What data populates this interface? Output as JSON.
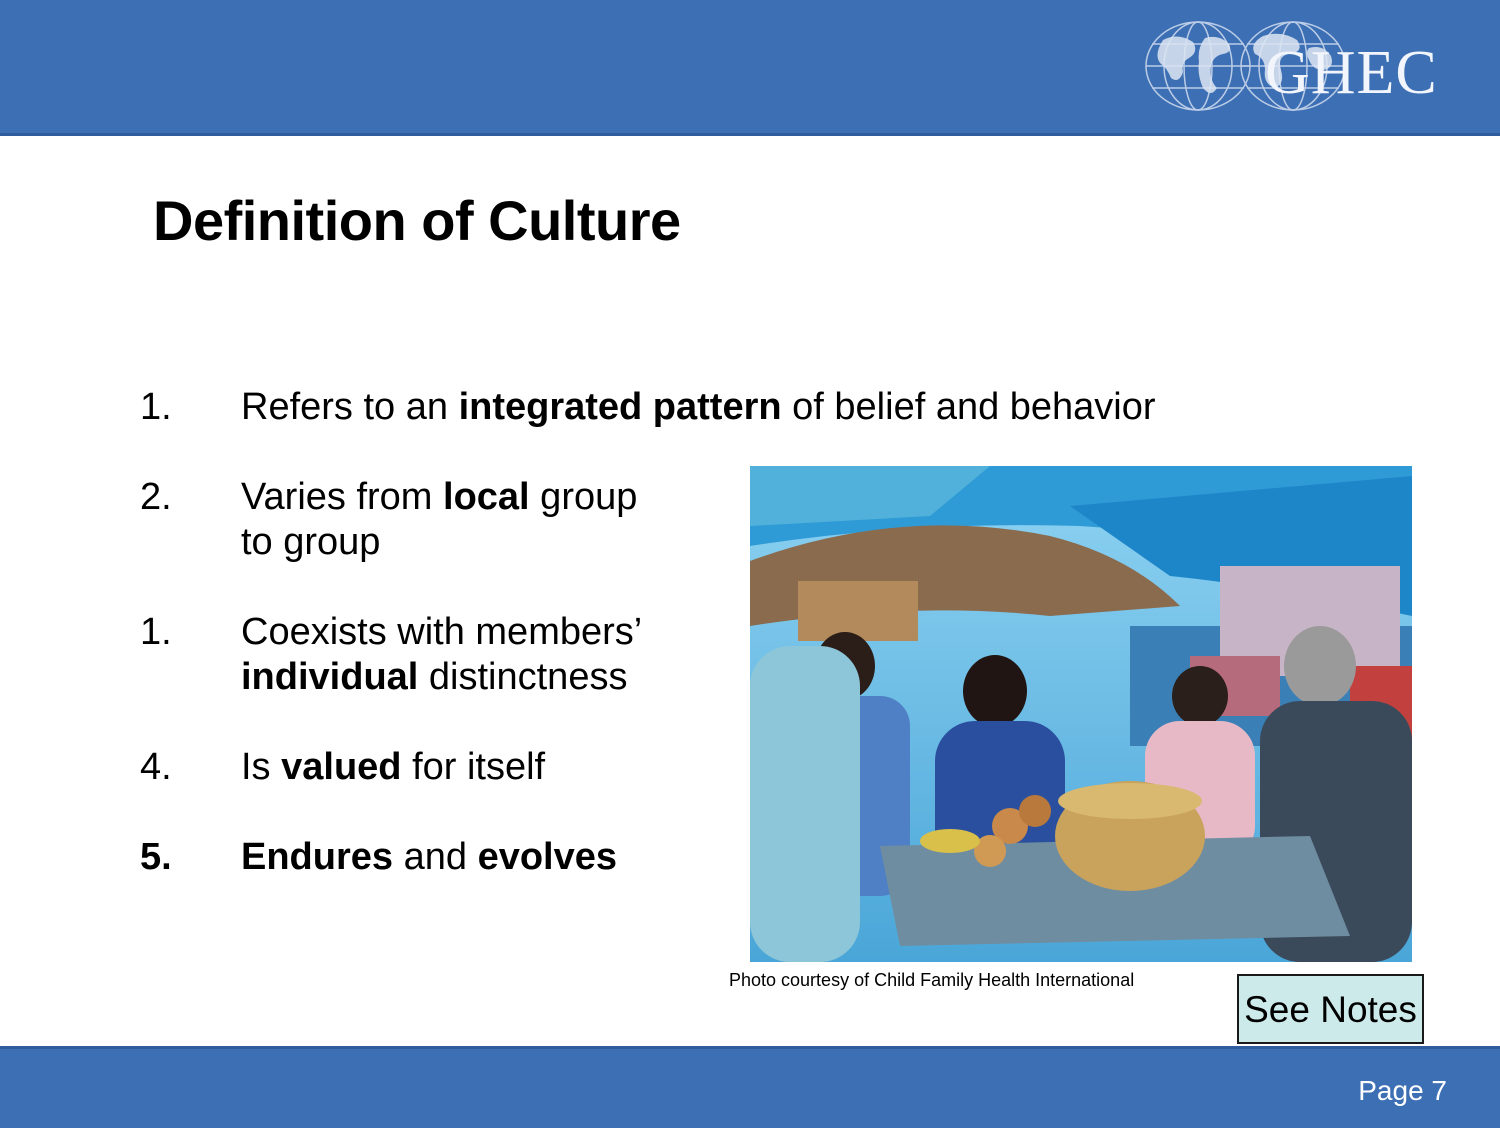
{
  "header": {
    "logo_text": "GHEC"
  },
  "slide": {
    "title": "Definition of Culture",
    "items": [
      {
        "num": "1.",
        "lines": [
          {
            "pre": "Refers to an ",
            "bold": "integrated pattern",
            "post": " of belief and behavior"
          }
        ]
      },
      {
        "num": "2.",
        "lines": [
          {
            "pre": "Varies from ",
            "bold": "local",
            "post": " group"
          },
          {
            "pre": "to group",
            "bold": "",
            "post": ""
          }
        ]
      },
      {
        "num": "1.",
        "lines": [
          {
            "pre": "Coexists with members’",
            "bold": "",
            "post": ""
          },
          {
            "pre": "",
            "bold": "individual",
            "post": " distinctness"
          }
        ]
      },
      {
        "num": "4.",
        "lines": [
          {
            "pre": "Is ",
            "bold": "valued",
            "post": " for itself"
          }
        ]
      },
      {
        "num": "5.",
        "lines": [
          {
            "pre": "",
            "bold": "Endures",
            "post": " and ",
            "bold2": "evolves"
          }
        ]
      }
    ],
    "photo_caption": "Photo courtesy of Child Family Health International",
    "see_notes_label": "See Notes"
  },
  "footer": {
    "page_label": "Page 7"
  },
  "colors": {
    "band": "#3d6fb4",
    "notes_bg": "#cdeaea"
  }
}
